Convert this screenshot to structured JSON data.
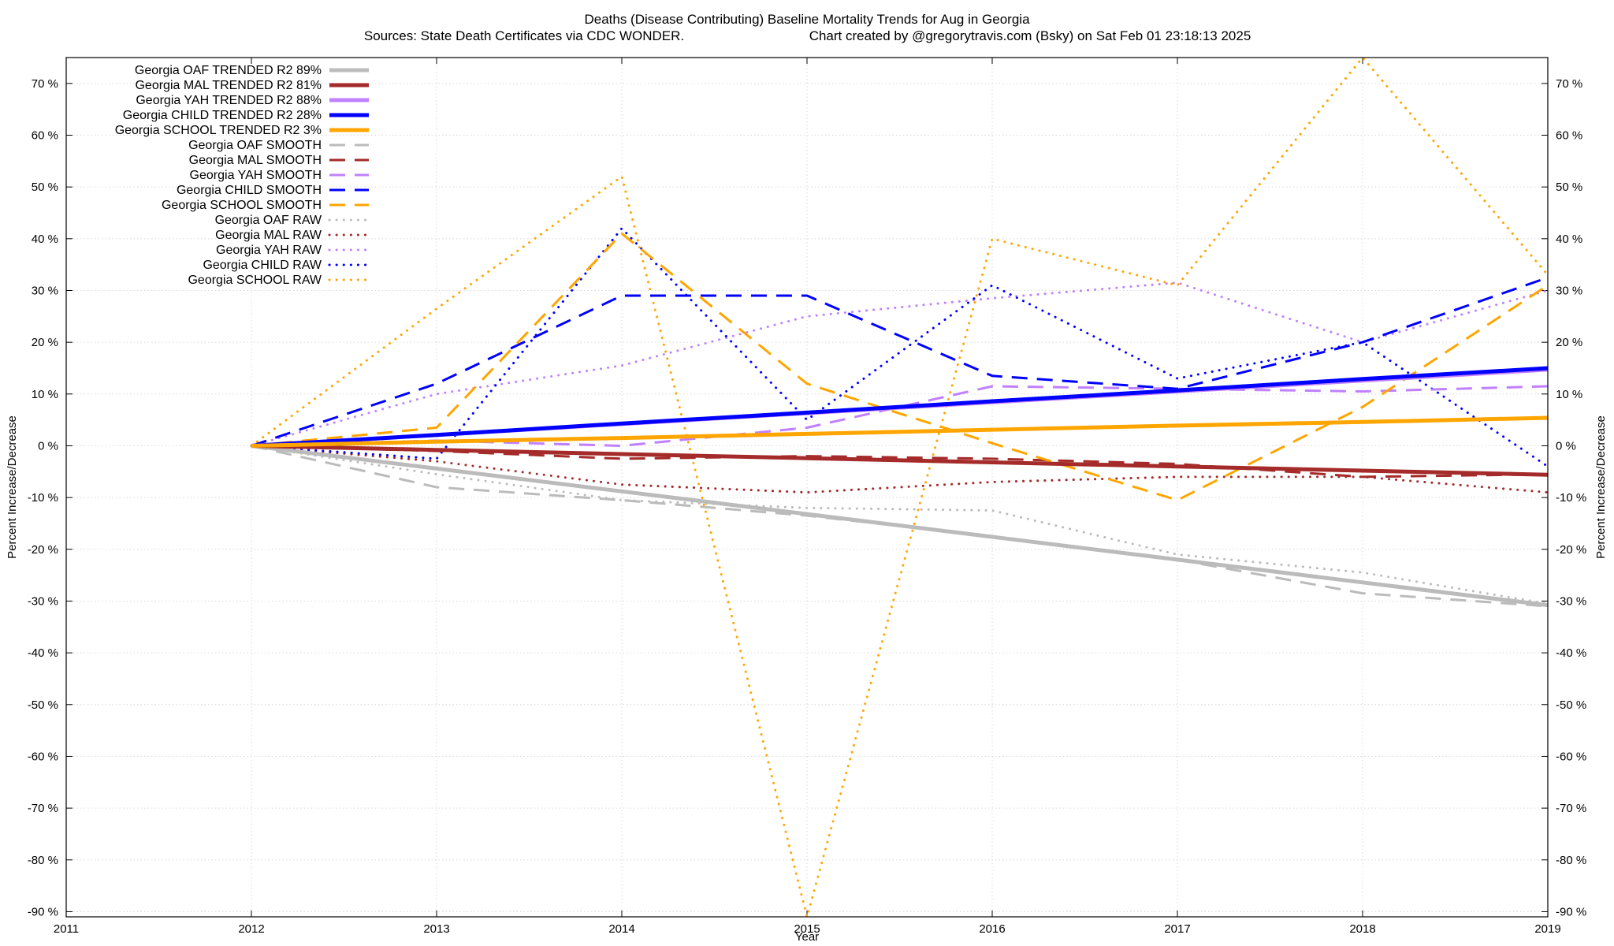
{
  "chart_data": {
    "type": "line",
    "title_line1": "Deaths (Disease Contributing)  Baseline Mortality Trends for Aug in Georgia",
    "title_line2_left": "Sources: State Death Certificates via CDC WONDER.",
    "title_line2_right": "Chart created by @gregorytravis.com (Bsky) on Sat Feb 01 23:18:13 2025",
    "xlabel": "Year",
    "ylabel": "Percent Increase/Decrease",
    "ylabel_right": "Percent Increase/Decrease",
    "xlim": [
      2011,
      2019
    ],
    "ylim": [
      -91,
      75
    ],
    "x_ticks": [
      "2011",
      "2012",
      "2013",
      "2014",
      "2015",
      "2016",
      "2017",
      "2018",
      "2019"
    ],
    "y_ticks": [
      "70 %",
      "60 %",
      "50 %",
      "40 %",
      "30 %",
      "20 %",
      "10 %",
      "0 %",
      "-10 %",
      "-20 %",
      "-30 %",
      "-40 %",
      "-50 %",
      "-60 %",
      "-70 %",
      "-80 %",
      "-90 %"
    ],
    "grid": true,
    "legend_position": "top-left",
    "x": [
      2012,
      2013,
      2014,
      2015,
      2016,
      2017,
      2018,
      2019
    ],
    "series": [
      {
        "name": "Georgia OAF TRENDED R2  89%",
        "color": "#bbbbbb",
        "style": "solid",
        "values": [
          0,
          -4.4,
          -8.8,
          -13.2,
          -17.6,
          -22,
          -26.4,
          -30.8
        ]
      },
      {
        "name": "Georgia MAL TRENDED R2  81%",
        "color": "#a52a2a",
        "style": "solid",
        "values": [
          0,
          -0.8,
          -1.6,
          -2.4,
          -3.2,
          -4,
          -4.8,
          -5.6
        ]
      },
      {
        "name": "Georgia YAH TRENDED R2  88%",
        "color": "#c080ff",
        "style": "solid",
        "values": [
          0,
          2.1,
          4.2,
          6.3,
          8.4,
          10.5,
          12.6,
          14.7
        ]
      },
      {
        "name": "Georgia CHILD TRENDED R2  28%",
        "color": "#0000ff",
        "style": "solid",
        "values": [
          0,
          2.1,
          4.3,
          6.4,
          8.6,
          10.7,
          12.9,
          15
        ]
      },
      {
        "name": "Georgia SCHOOL TRENDED R2   3%",
        "color": "#ffa500",
        "style": "solid",
        "values": [
          0,
          0.8,
          1.5,
          2.3,
          3.1,
          3.9,
          4.6,
          5.4
        ]
      },
      {
        "name": "Georgia OAF SMOOTH",
        "color": "#bbbbbb",
        "style": "dashed",
        "values": [
          0,
          -8,
          -10.5,
          -13.5,
          -17.5,
          -22,
          -28.5,
          -31
        ]
      },
      {
        "name": "Georgia MAL SMOOTH",
        "color": "#a52a2a",
        "style": "dashed",
        "values": [
          0,
          -1,
          -2.5,
          -2,
          -2.5,
          -3.5,
          -6,
          -5.5
        ]
      },
      {
        "name": "Georgia YAH SMOOTH",
        "color": "#c080ff",
        "style": "dashed",
        "values": [
          0,
          1,
          0,
          3.5,
          11.5,
          11,
          10.5,
          11.5
        ]
      },
      {
        "name": "Georgia CHILD SMOOTH",
        "color": "#0000ff",
        "style": "dashed",
        "values": [
          0,
          12,
          29,
          29,
          13.5,
          11,
          20,
          32.5
        ]
      },
      {
        "name": "Georgia SCHOOL SMOOTH",
        "color": "#ffa500",
        "style": "dashed",
        "values": [
          0,
          3.5,
          41,
          12,
          0.5,
          -10.5,
          7.5,
          31
        ]
      },
      {
        "name": "Georgia OAF RAW",
        "color": "#bbbbbb",
        "style": "dotted",
        "values": [
          0,
          -5.5,
          -10.5,
          -12,
          -12.5,
          -21,
          -24.5,
          -30.5
        ]
      },
      {
        "name": "Georgia MAL RAW",
        "color": "#a52a2a",
        "style": "dotted",
        "values": [
          0,
          -3,
          -7.5,
          -9,
          -7,
          -6,
          -6,
          -9
        ]
      },
      {
        "name": "Georgia YAH RAW",
        "color": "#c080ff",
        "style": "dotted",
        "values": [
          0,
          10,
          15.5,
          25,
          28.5,
          31.5,
          20,
          30
        ]
      },
      {
        "name": "Georgia CHILD RAW",
        "color": "#0000ff",
        "style": "dotted",
        "values": [
          0,
          -2.5,
          42,
          5,
          31,
          13,
          20,
          -4
        ]
      },
      {
        "name": "Georgia SCHOOL RAW",
        "color": "#ffa500",
        "style": "dotted",
        "values": [
          0,
          26.5,
          52,
          -91,
          40,
          31,
          75,
          33
        ]
      }
    ]
  }
}
